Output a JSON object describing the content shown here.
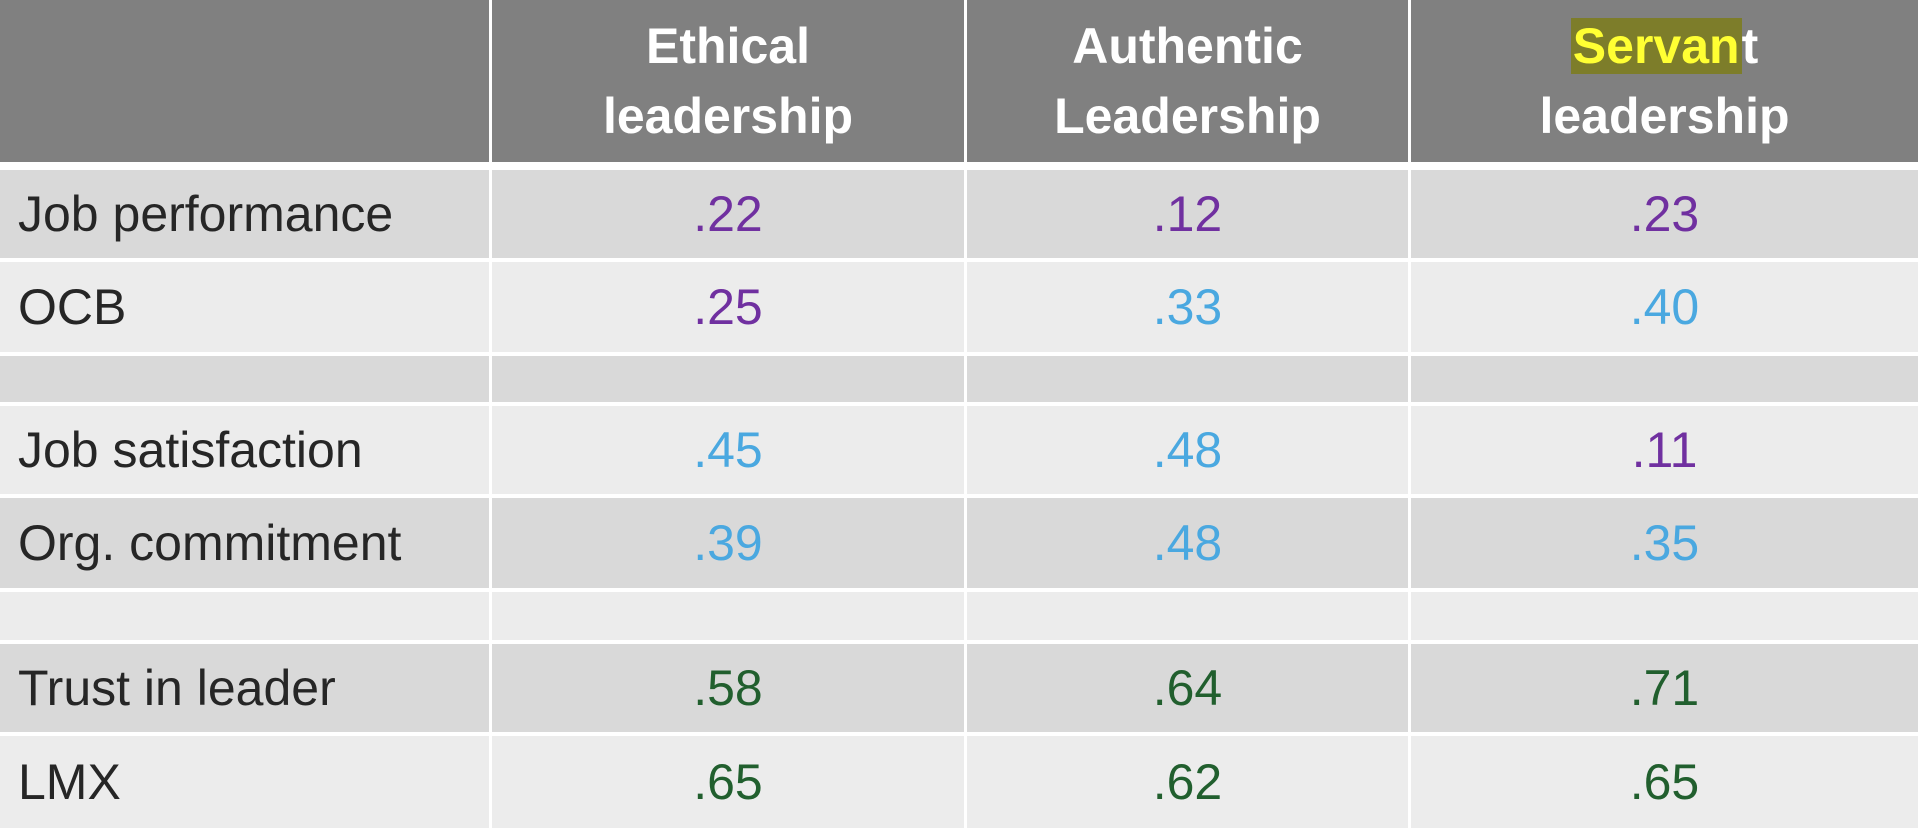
{
  "header": {
    "col0": "",
    "col1_line1": "Ethical",
    "col1_line2": "leadership",
    "col2_line1": "Authentic",
    "col2_line2": "Leadership",
    "col3_line1_highlighted": "Servan",
    "col3_line1_rest": "t",
    "col3_line2": "leadership"
  },
  "rows": [
    {
      "label": "Job performance",
      "ethical": ".22",
      "authentic": ".12",
      "servant": ".23"
    },
    {
      "label": "OCB",
      "ethical": ".25",
      "authentic": ".33",
      "servant": ".40"
    },
    {
      "label": "",
      "ethical": "",
      "authentic": "",
      "servant": ""
    },
    {
      "label": "Job satisfaction",
      "ethical": ".45",
      "authentic": ".48",
      "servant": ".11"
    },
    {
      "label": "Org. commitment",
      "ethical": ".39",
      "authentic": ".48",
      "servant": ".35"
    },
    {
      "label": "",
      "ethical": "",
      "authentic": "",
      "servant": ""
    },
    {
      "label": "Trust in leader",
      "ethical": ".58",
      "authentic": ".64",
      "servant": ".71"
    },
    {
      "label": "LMX",
      "ethical": ".65",
      "authentic": ".62",
      "servant": ".65"
    }
  ],
  "colors": {
    "header_bg": "#808080",
    "row_dark": "#d9d9d9",
    "row_light": "#ececec",
    "purple": "#7030a0",
    "blue": "#4aa8e0",
    "green": "#215f2e",
    "highlight_bg": "#7d7d2a",
    "highlight_text": "#ffff33"
  }
}
